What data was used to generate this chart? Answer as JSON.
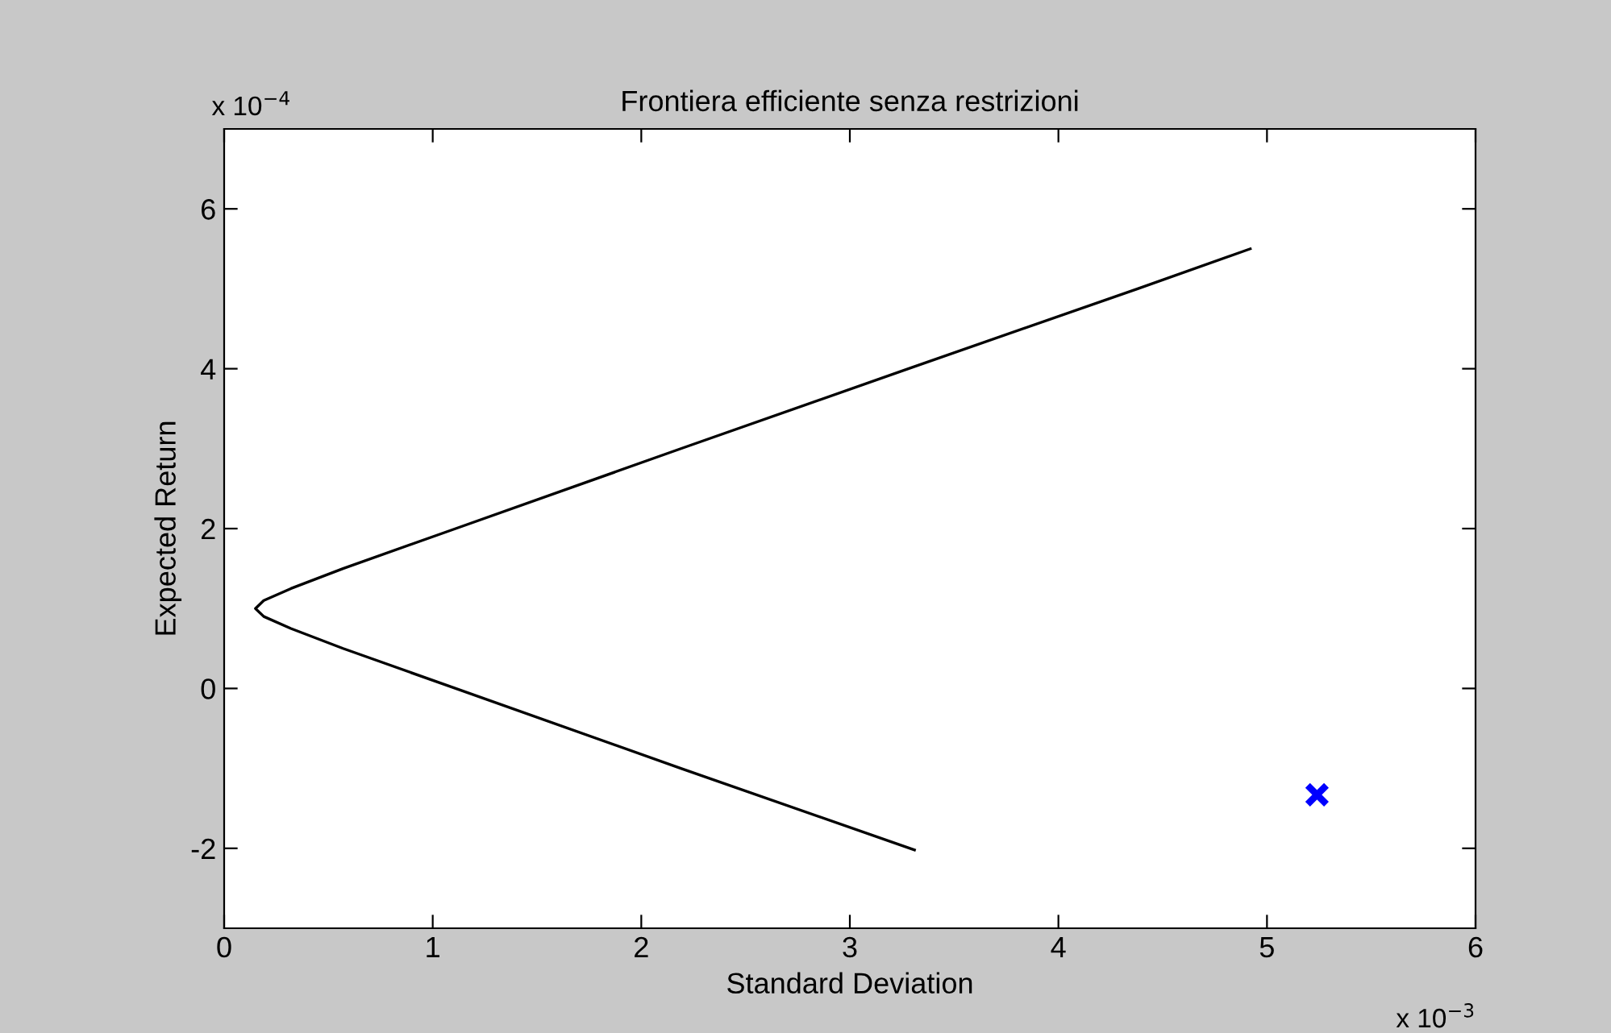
{
  "chart_data": {
    "type": "line",
    "title": "Frontiera efficiente senza restrizioni",
    "xlabel": "Standard Deviation",
    "ylabel": "Expected Return",
    "annotations": [
      "x 10$^{−3}$",
      "x 10$^{−4}$"
    ],
    "xlim": [
      0,
      6
    ],
    "xticks": [
      0,
      1,
      2,
      3,
      4,
      5,
      6
    ],
    "ylim": [
      -3,
      7
    ],
    "yticks": [
      -2,
      0,
      2,
      4,
      6
    ],
    "grid": false,
    "legend": false,
    "series": [
      {
        "color": "#000000",
        "x": [
          4.92,
          4.38,
          3.28,
          2.19,
          1.11,
          0.57,
          0.32,
          0.19,
          0.15,
          0.19,
          0.32,
          0.57,
          1.11,
          2.19,
          3.31
        ],
        "values": [
          5.5,
          5,
          4,
          3,
          2,
          1.5,
          1.25,
          1.1,
          1.0,
          0.9,
          0.75,
          0.5,
          0,
          -1,
          -2.02
        ]
      },
      {
        "type": "scatter",
        "color": "#0000ff",
        "marker": "cross",
        "x": [
          5.24
        ],
        "values": [
          -1.33
        ]
      }
    ]
  }
}
